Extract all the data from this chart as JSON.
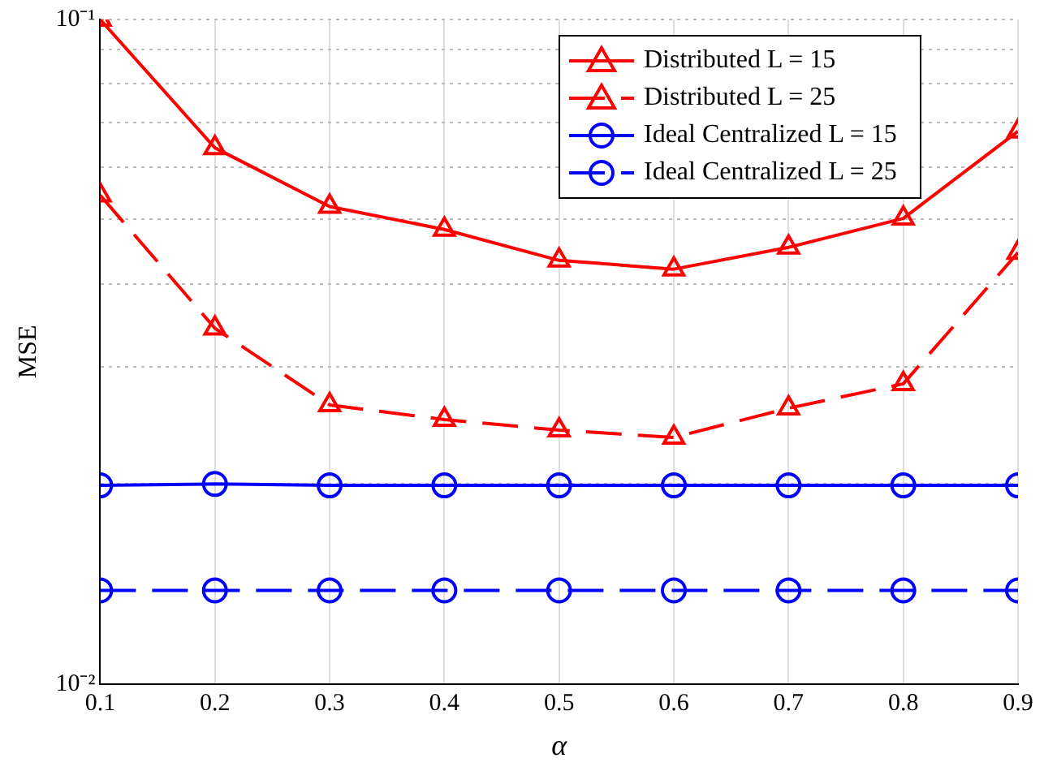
{
  "chart_data": {
    "type": "line",
    "xlabel": "α",
    "ylabel": "MSE",
    "x": [
      0.1,
      0.2,
      0.3,
      0.4,
      0.5,
      0.6,
      0.7,
      0.8,
      0.9
    ],
    "xlim": [
      0.1,
      0.9
    ],
    "xticks": [
      0.1,
      0.2,
      0.3,
      0.4,
      0.5,
      0.6,
      0.7,
      0.8,
      0.9
    ],
    "ylim": [
      0.01,
      0.1
    ],
    "yticks": [
      {
        "value": 0.01,
        "label": "10⁻²"
      },
      {
        "value": 0.02,
        "label": null
      },
      {
        "value": 0.03,
        "label": null
      },
      {
        "value": 0.04,
        "label": null
      },
      {
        "value": 0.05,
        "label": null
      },
      {
        "value": 0.06,
        "label": null
      },
      {
        "value": 0.07,
        "label": null
      },
      {
        "value": 0.08,
        "label": null
      },
      {
        "value": 0.09,
        "label": null
      },
      {
        "value": 0.1,
        "label": "10⁻¹"
      }
    ],
    "log": "y",
    "grid": true,
    "legend": "top right",
    "series": [
      {
        "name": "Distributed L = 15",
        "color": "#ff0000",
        "marker": "triangle",
        "line_style": "solid",
        "values": [
          0.1,
          0.0641,
          0.0523,
          0.0483,
          0.0434,
          0.0421,
          0.0454,
          0.0502,
          0.0679
        ]
      },
      {
        "name": "Distributed L = 25",
        "color": "#ff0000",
        "marker": "triangle",
        "line_style": "dashed",
        "values": [
          0.0544,
          0.0343,
          0.0263,
          0.025,
          0.0241,
          0.0235,
          0.026,
          0.0283,
          0.0446
        ]
      },
      {
        "name": "Ideal Centralized L = 15",
        "color": "#0000ff",
        "marker": "circle",
        "line_style": "solid",
        "values": [
          0.0199,
          0.02,
          0.0199,
          0.0199,
          0.0199,
          0.0199,
          0.0199,
          0.0199,
          0.0199
        ]
      },
      {
        "name": "Ideal Centralized L = 25",
        "color": "#0000ff",
        "marker": "circle",
        "line_style": "dashed",
        "values": [
          0.01383,
          0.01383,
          0.01383,
          0.01383,
          0.01383,
          0.01383,
          0.01383,
          0.01383,
          0.01383
        ]
      }
    ]
  }
}
